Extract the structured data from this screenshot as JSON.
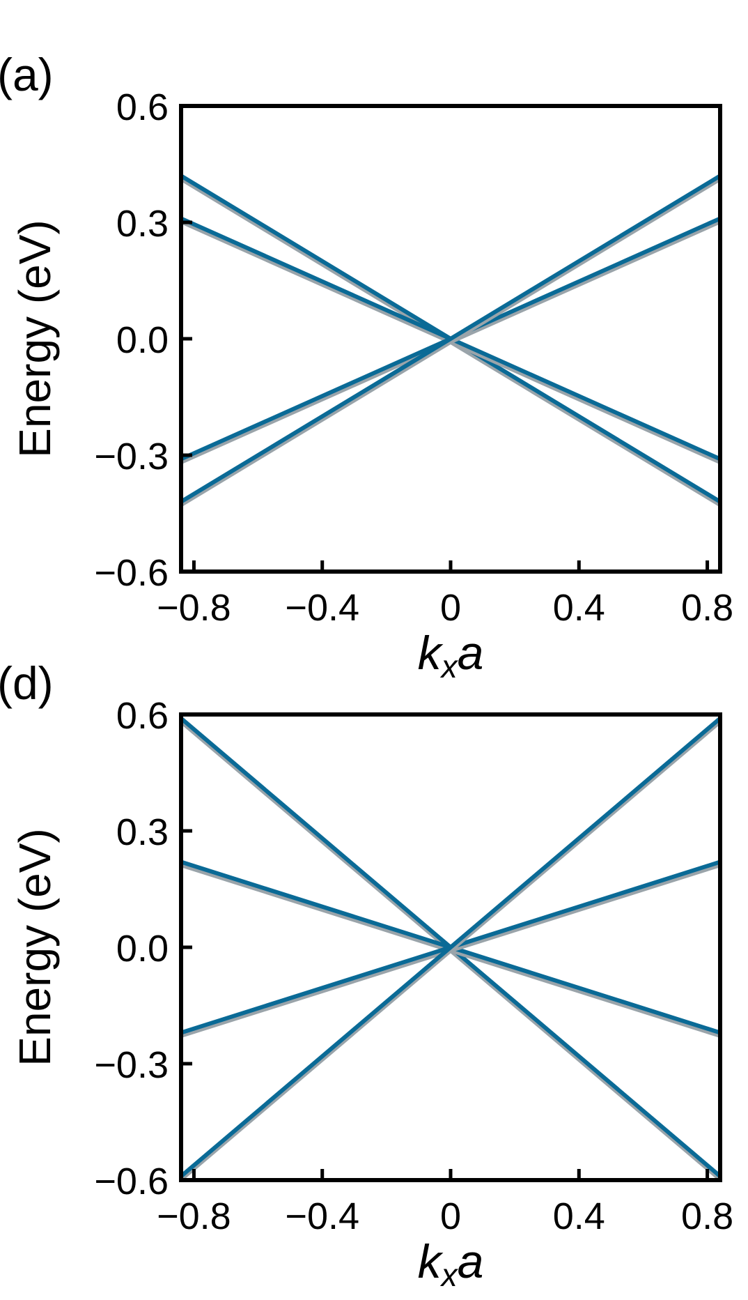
{
  "chart_data": [
    {
      "type": "line",
      "panel_label": "(a)",
      "xlabel_main": "k",
      "xlabel_sub": "x",
      "xlabel_tail": "a",
      "ylabel": "Energy (eV)",
      "xlim": [
        -0.84,
        0.84
      ],
      "ylim": [
        -0.6,
        0.6
      ],
      "xticks": [
        -0.8,
        -0.4,
        0,
        0.4,
        0.8
      ],
      "xtick_labels": [
        "−0.8",
        "−0.4",
        "0",
        "0.4",
        "0.8"
      ],
      "yticks": [
        -0.6,
        -0.3,
        0.0,
        0.3,
        0.6
      ],
      "ytick_labels": [
        "−0.6",
        "−0.3",
        "0.0",
        "0.3",
        "0.6"
      ],
      "line_color": "#0a6a96",
      "shadow_color": "#9aa4aa",
      "series": [
        {
          "x": [
            -0.84,
            0.84
          ],
          "y": [
            0.42,
            -0.42
          ]
        },
        {
          "x": [
            -0.84,
            0.84
          ],
          "y": [
            0.31,
            -0.31
          ]
        },
        {
          "x": [
            -0.84,
            0.84
          ],
          "y": [
            -0.31,
            0.31
          ]
        },
        {
          "x": [
            -0.84,
            0.84
          ],
          "y": [
            -0.42,
            0.42
          ]
        }
      ]
    },
    {
      "type": "line",
      "panel_label": "(d)",
      "xlabel_main": "k",
      "xlabel_sub": "x",
      "xlabel_tail": "a",
      "ylabel": "Energy (eV)",
      "xlim": [
        -0.84,
        0.84
      ],
      "ylim": [
        -0.6,
        0.6
      ],
      "xticks": [
        -0.8,
        -0.4,
        0,
        0.4,
        0.8
      ],
      "xtick_labels": [
        "−0.8",
        "−0.4",
        "0",
        "0.4",
        "0.8"
      ],
      "yticks": [
        -0.6,
        -0.3,
        0.0,
        0.3,
        0.6
      ],
      "ytick_labels": [
        "−0.6",
        "−0.3",
        "0.0",
        "0.3",
        "0.6"
      ],
      "line_color": "#0a6a96",
      "shadow_color": "#9aa4aa",
      "series": [
        {
          "x": [
            -0.84,
            0.84
          ],
          "y": [
            0.59,
            -0.59
          ]
        },
        {
          "x": [
            -0.84,
            0.84
          ],
          "y": [
            0.22,
            -0.22
          ]
        },
        {
          "x": [
            -0.84,
            0.84
          ],
          "y": [
            -0.22,
            0.22
          ]
        },
        {
          "x": [
            -0.84,
            0.84
          ],
          "y": [
            -0.59,
            0.59
          ]
        }
      ]
    }
  ]
}
